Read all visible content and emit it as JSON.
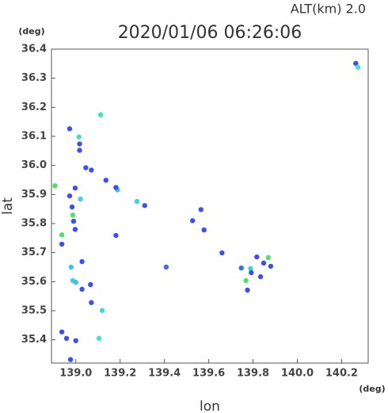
{
  "chart_data": {
    "type": "scatter",
    "title": "2020/01/06 06:26:06",
    "annotation": "ALT(km)  2.0",
    "x_label": "lon",
    "y_label": "lat",
    "x_unit": "(deg)",
    "y_unit": "(deg)",
    "xlim": [
      138.89,
      140.32
    ],
    "ylim": [
      35.32,
      36.4
    ],
    "xticks": [
      {
        "value": 139.0,
        "label": "139.0"
      },
      139.2,
      139.4,
      139.6,
      139.8,
      {
        "value": 140.0,
        "label": "140.0"
      },
      140.2
    ],
    "yticks": [
      35.4,
      35.5,
      35.6,
      35.7,
      35.8,
      35.9,
      {
        "value": 36.0,
        "label": "36.0"
      },
      36.1,
      36.2,
      36.3,
      36.4
    ],
    "grid": false,
    "x": [
      138.972,
      139.014,
      139.017,
      139.017,
      139.045,
      139.07,
      139.112,
      138.906,
      138.972,
      138.997,
      139.021,
      138.983,
      138.986,
      138.99,
      138.997,
      138.937,
      138.979,
      138.937,
      139.028,
      138.986,
      139.0,
      139.028,
      139.066,
      139.07,
      139.119,
      138.937,
      138.958,
      139.0,
      139.105,
      138.976,
      139.136,
      139.188,
      139.181,
      139.276,
      139.181,
      139.311,
      139.408,
      139.527,
      139.565,
      139.579,
      139.66,
      139.817,
      139.848,
      139.869,
      139.789,
      139.792,
      139.834,
      139.88,
      139.768,
      139.775,
      139.747,
      140.264,
      140.274
    ],
    "y": [
      36.126,
      36.098,
      36.052,
      36.074,
      35.992,
      35.984,
      36.174,
      35.93,
      35.895,
      35.922,
      35.884,
      35.857,
      35.829,
      35.808,
      35.78,
      35.761,
      35.65,
      35.729,
      35.669,
      35.604,
      35.598,
      35.574,
      35.59,
      35.528,
      35.501,
      35.427,
      35.405,
      35.397,
      35.405,
      35.332,
      35.949,
      35.916,
      35.924,
      35.876,
      35.759,
      35.862,
      35.65,
      35.81,
      35.848,
      35.778,
      35.699,
      35.685,
      35.664,
      35.683,
      35.645,
      35.631,
      35.617,
      35.653,
      35.604,
      35.571,
      35.647,
      36.351,
      36.338
    ],
    "colors": [
      "#3a50f0",
      "#40e0d0",
      "#3a50f0",
      "#3a50f0",
      "#3a50f0",
      "#3a50f0",
      "#40e0c0",
      "#50e060",
      "#3a50f0",
      "#3a50f0",
      "#40d0e0",
      "#3a50f0",
      "#50e070",
      "#3a50f0",
      "#3a50f0",
      "#50e060",
      "#40c0f0",
      "#3a50f0",
      "#3a50f0",
      "#40d0e0",
      "#40c0f0",
      "#3a50f0",
      "#3a50f0",
      "#3a50f0",
      "#40e0c0",
      "#3a50f0",
      "#3a50f0",
      "#3a50f0",
      "#40e0d0",
      "#3a50f0",
      "#3a50f0",
      "#40c0f0",
      "#3a50f0",
      "#40d0e0",
      "#3a50f0",
      "#3a50f0",
      "#3a70f0",
      "#3a50f0",
      "#3a50f0",
      "#3a50f0",
      "#3a50f0",
      "#3a50f0",
      "#3a50f0",
      "#50e070",
      "#40d0e0",
      "#3a50f0",
      "#3a50f0",
      "#3a50f0",
      "#50e070",
      "#3a50f0",
      "#3a70f0",
      "#3a50f0",
      "#40e0d0"
    ]
  }
}
